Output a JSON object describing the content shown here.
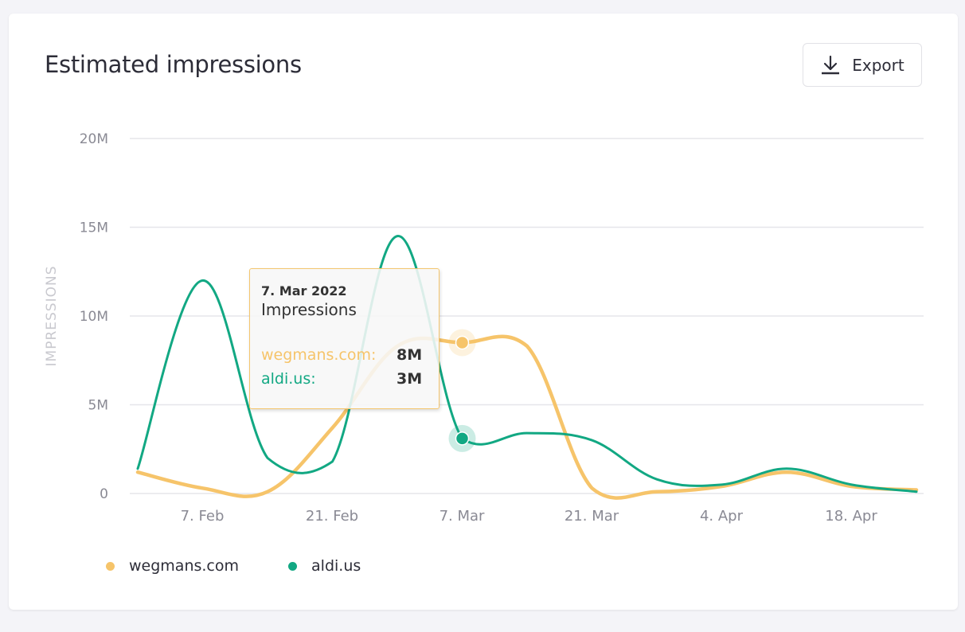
{
  "card": {
    "title": "Estimated impressions",
    "export_label": "Export",
    "export_icon": "download-icon"
  },
  "colors": {
    "wegmans": "#f6c46a",
    "aldi": "#12a883",
    "grid": "#e6e6ea",
    "axis_text": "#8a8a94"
  },
  "tooltip": {
    "date": "7. Mar 2022",
    "metric": "Impressions",
    "rows": [
      {
        "name": "wegmans.com:",
        "value": "8M"
      },
      {
        "name": "aldi.us:",
        "value": "3M"
      }
    ]
  },
  "legend": [
    {
      "label": "wegmans.com"
    },
    {
      "label": "aldi.us"
    }
  ],
  "chart_data": {
    "type": "line",
    "title": "Estimated impressions",
    "xlabel": "",
    "ylabel": "IMPRESSIONS",
    "ylim": [
      0,
      20000000
    ],
    "y_ticks": [
      "0",
      "5M",
      "10M",
      "15M",
      "20M"
    ],
    "x_ticks": [
      "7. Feb",
      "21. Feb",
      "7. Mar",
      "21. Mar",
      "4. Apr",
      "18. Apr"
    ],
    "grid": true,
    "legend_position": "bottom-left",
    "x": [
      "31. Jan",
      "7. Feb",
      "14. Feb",
      "21. Feb",
      "28. Feb",
      "7. Mar",
      "14. Mar",
      "21. Mar",
      "28. Mar",
      "4. Apr",
      "11. Apr",
      "18. Apr",
      "25. Apr"
    ],
    "series": [
      {
        "name": "wegmans.com",
        "values": [
          1200000,
          300000,
          100000,
          3700000,
          8300000,
          8500000,
          8300000,
          300000,
          100000,
          400000,
          1200000,
          400000,
          200000
        ]
      },
      {
        "name": "aldi.us",
        "values": [
          1400000,
          12000000,
          2000000,
          1800000,
          14500000,
          3100000,
          3400000,
          3000000,
          800000,
          500000,
          1400000,
          500000,
          100000
        ]
      }
    ],
    "highlight": {
      "x": "7. Mar",
      "wegmans.com": "8M",
      "aldi.us": "3M"
    }
  }
}
